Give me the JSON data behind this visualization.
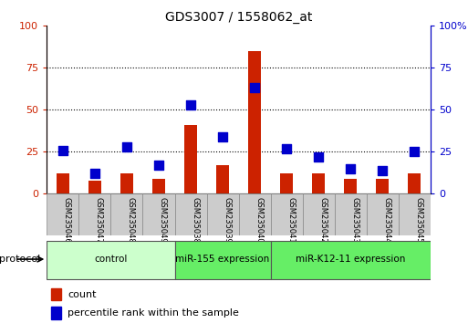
{
  "title": "GDS3007 / 1558062_at",
  "samples": [
    "GSM235046",
    "GSM235047",
    "GSM235048",
    "GSM235049",
    "GSM235038",
    "GSM235039",
    "GSM235040",
    "GSM235041",
    "GSM235042",
    "GSM235043",
    "GSM235044",
    "GSM235045"
  ],
  "count_values": [
    12,
    8,
    12,
    9,
    41,
    17,
    85,
    12,
    12,
    9,
    9,
    12
  ],
  "percentile_values": [
    26,
    12,
    28,
    17,
    53,
    34,
    63,
    27,
    22,
    15,
    14,
    25
  ],
  "group_boundaries": [
    0,
    4,
    7,
    12
  ],
  "group_labels": [
    "control",
    "miR-155 expression",
    "miR-K12-11 expression"
  ],
  "group_colors": [
    "#ccffcc",
    "#66ee66",
    "#66ee66"
  ],
  "bar_color": "#cc2200",
  "dot_color": "#0000cc",
  "ylim": [
    0,
    100
  ],
  "yticks": [
    0,
    25,
    50,
    75,
    100
  ],
  "ytick_labels_left": [
    "0",
    "25",
    "50",
    "75",
    "100"
  ],
  "ytick_labels_right": [
    "0",
    "25",
    "50",
    "75",
    "100%"
  ],
  "bar_width": 0.4,
  "dot_size": 55
}
